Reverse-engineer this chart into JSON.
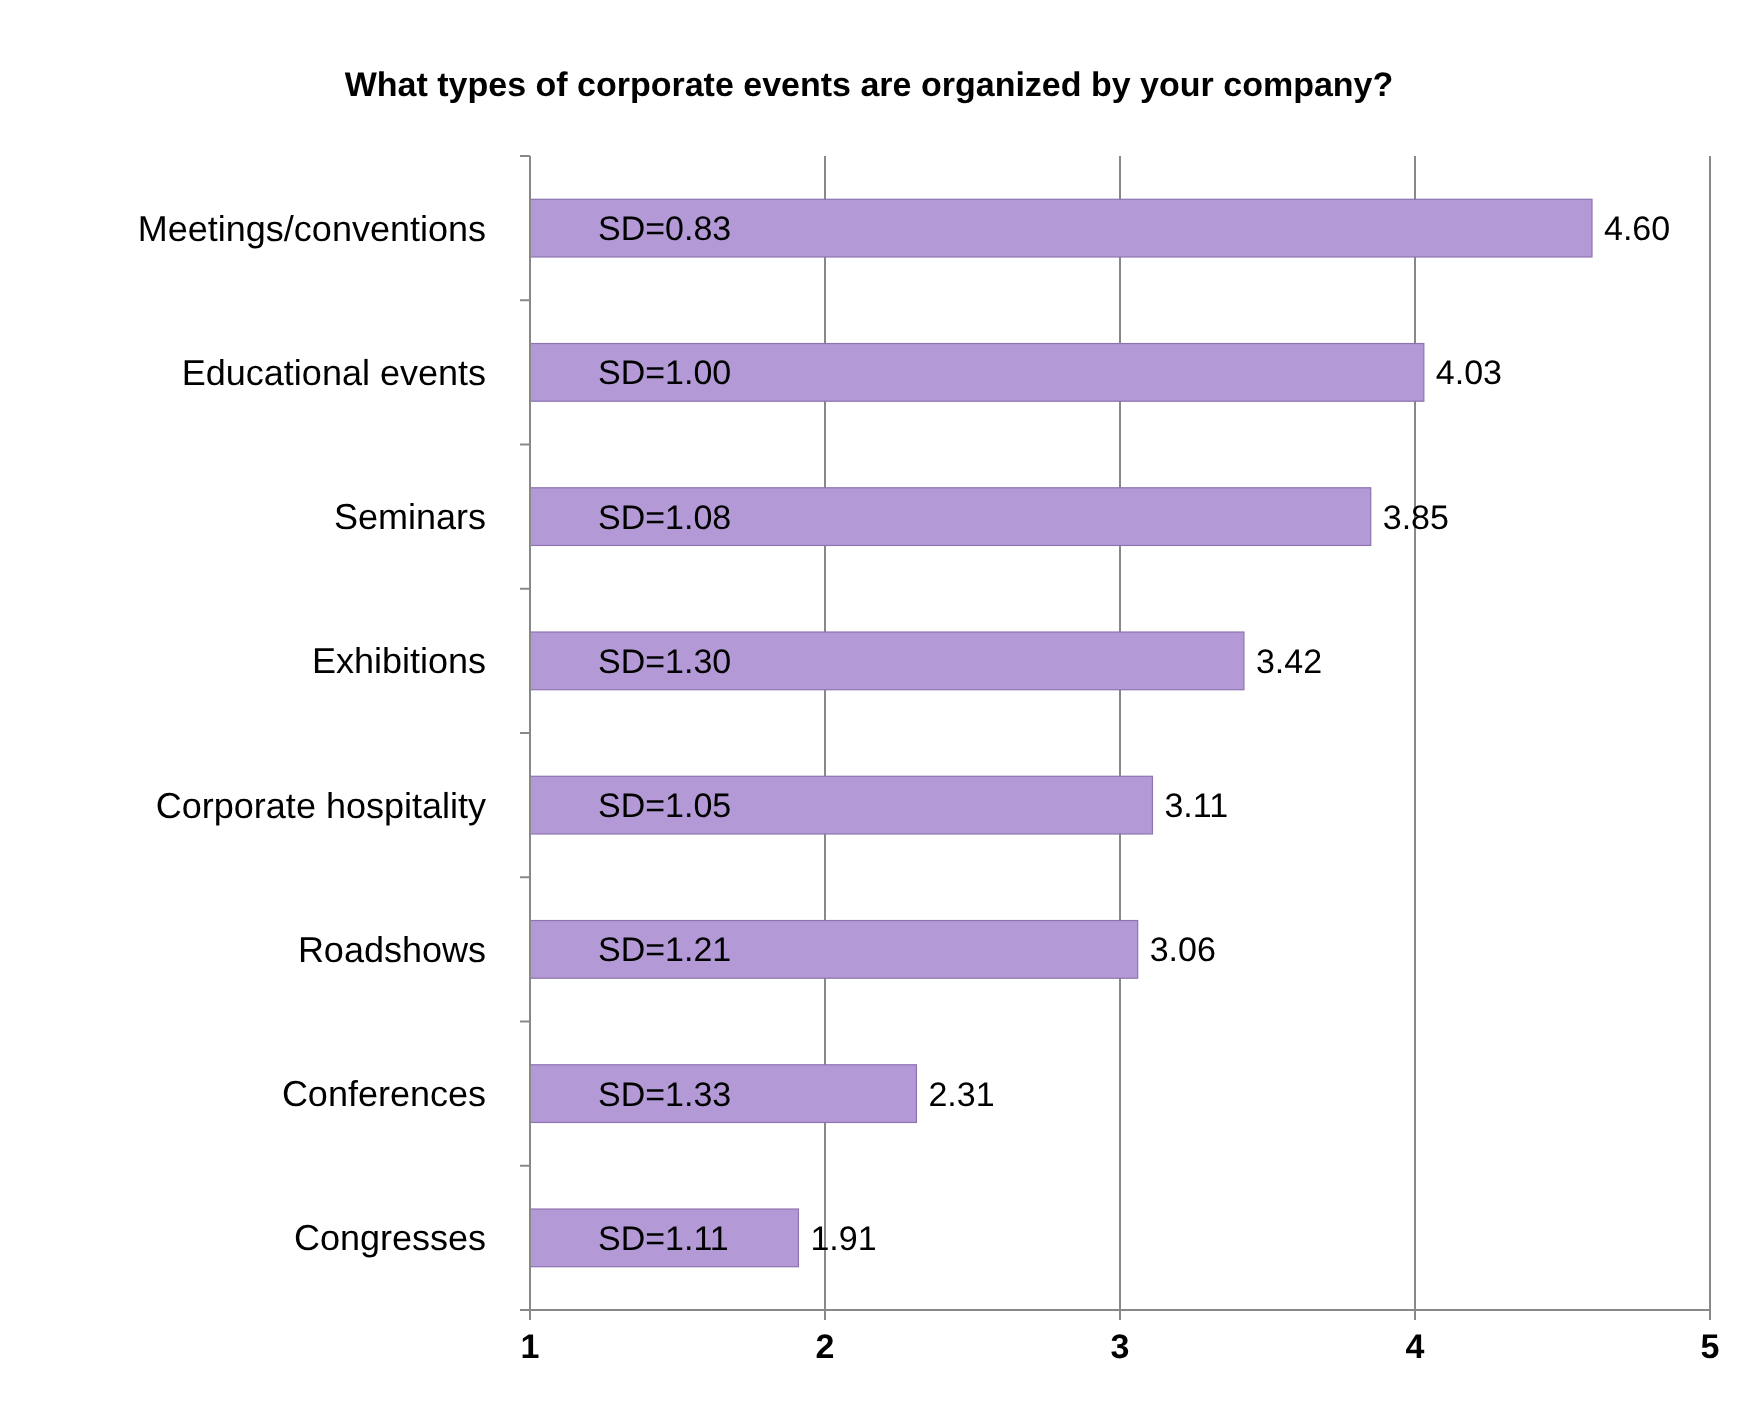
{
  "chart_data": {
    "type": "bar",
    "orientation": "horizontal",
    "title": "What types of corporate events are organized by your company?",
    "categories": [
      "Meetings/conventions",
      "Educational events",
      "Seminars",
      "Exhibitions",
      "Corporate hospitality",
      "Roadshows",
      "Conferences",
      "Congresses"
    ],
    "values": [
      4.6,
      4.03,
      3.85,
      3.42,
      3.11,
      3.06,
      2.31,
      1.91
    ],
    "value_labels": [
      "4.60",
      "4.03",
      "3.85",
      "3.42",
      "3.11",
      "3.06",
      "2.31",
      "1.91"
    ],
    "color": "#b39ad6",
    "xlim": [
      1,
      5
    ],
    "xticks": [
      1,
      2,
      3,
      4,
      5
    ],
    "grid": "x",
    "annotations": [
      "SD=0.83",
      "SD=1.00",
      "SD=1.08",
      "SD=1.30",
      "SD=1.05",
      "SD=1.21",
      "SD=1.33",
      "SD=1.11"
    ]
  }
}
